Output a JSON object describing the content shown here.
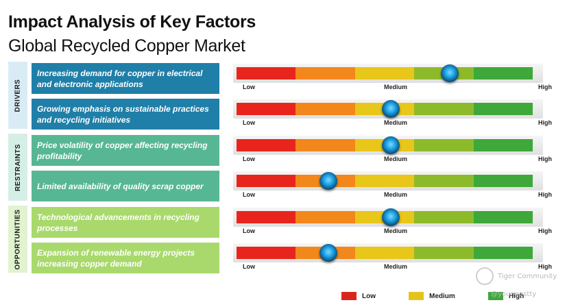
{
  "title": "Impact Analysis of Key Factors",
  "subtitle": "Global Recycled Copper Market",
  "scale": {
    "low": "Low",
    "medium": "Medium",
    "high": "High"
  },
  "sections": [
    {
      "label": "DRIVERS",
      "color": "#d9ecf6"
    },
    {
      "label": "RESTRAINTS",
      "color": "#d6efe6"
    },
    {
      "label": "OPPORTUNITIES",
      "color": "#e1f3cf"
    }
  ],
  "factors": [
    {
      "text": "Increasing demand for copper in electrical and electronic applications",
      "section": "DRIVERS",
      "color": "#1f7fa8",
      "impact_fraction": 0.72
    },
    {
      "text": "Growing emphasis on sustainable practices and recycling initiatives",
      "section": "DRIVERS",
      "color": "#1f7fa8",
      "impact_fraction": 0.52
    },
    {
      "text": "Price volatility of copper affecting recycling profitability",
      "section": "RESTRAINTS",
      "color": "#57b795",
      "impact_fraction": 0.52
    },
    {
      "text": "Limited availability of quality scrap copper",
      "section": "RESTRAINTS",
      "color": "#57b795",
      "impact_fraction": 0.31
    },
    {
      "text": "Technological advancements in recycling processes",
      "section": "OPPORTUNITIES",
      "color": "#a9d96c",
      "impact_fraction": 0.52
    },
    {
      "text": "Expansion of renewable energy projects increasing copper demand",
      "section": "OPPORTUNITIES",
      "color": "#a9d96c",
      "impact_fraction": 0.31
    }
  ],
  "bar_colors": [
    "#e8251d",
    "#f2871c",
    "#e8c61a",
    "#8dba2b",
    "#3ea83a"
  ],
  "legend": [
    {
      "label": "Low",
      "color": "#d9261c"
    },
    {
      "label": "Medium",
      "color": "#e3c41c"
    },
    {
      "label": "High",
      "color": "#3ea83a"
    }
  ],
  "watermark": {
    "brand": "Tiger Community",
    "handle": "@youngestty"
  }
}
